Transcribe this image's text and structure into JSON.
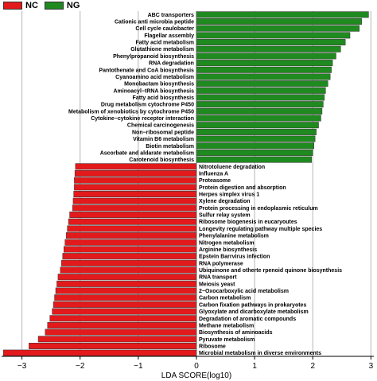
{
  "chart_data": {
    "type": "bar",
    "orientation": "horizontal",
    "xlabel": "LDA SCORE(log10)",
    "xlim": [
      -3.35,
      3.05
    ],
    "xticks": [
      -3,
      -2,
      -1,
      0,
      1,
      2,
      3
    ],
    "xtick_labels": [
      "−3",
      "−2",
      "−1",
      "0",
      "1",
      "2",
      "3"
    ],
    "grid": "vertical",
    "legend_position": "top-left",
    "series": [
      {
        "name": "NC",
        "color": "#e31a1c",
        "categories": [
          "Nitrotoluene degradation",
          "Influenza A",
          "Proteasome",
          "Protein digestion and absorption",
          "Herpes simplex virus 1",
          "Xylene degradation",
          "Protein processing in endoplasmic reticulum",
          "Sulfur relay system",
          "Ribosome biogenesis in eucaryoutes",
          "Longevity regulating pathway multiple species",
          "Phenylalanine metabolism",
          "Nitrogen metabolism",
          "Arginine biosynthesis",
          "Epstein Barrvirus infection",
          "RNA polymerase",
          "Ubiquinone and otherte rpenoid quinone biosynthesis",
          "RNA transport",
          "Meiosis yeast",
          "2−Oxocarboxylic acid metabolism",
          "Carbon metabolism",
          "Carbon fixation pathways in prokaryotes",
          "Glyoxylate and dicarboxylate metabolism",
          "Degradation of aromatic compounds",
          "Methane metabolism",
          "Biosynthesis of aminoacids",
          "Pyruvate metabolism",
          "Ribosome",
          "Microbial metabolism in diverse environments"
        ],
        "values": [
          -2.08,
          -2.09,
          -2.1,
          -2.1,
          -2.11,
          -2.12,
          -2.13,
          -2.18,
          -2.2,
          -2.22,
          -2.24,
          -2.26,
          -2.28,
          -2.3,
          -2.32,
          -2.34,
          -2.38,
          -2.4,
          -2.42,
          -2.44,
          -2.46,
          -2.48,
          -2.52,
          -2.56,
          -2.6,
          -2.72,
          -2.88,
          -3.32
        ]
      },
      {
        "name": "NG",
        "color": "#1f8a1f",
        "categories": [
          "ABC transporters",
          "Cationic anti microbia peptide",
          "Cell cycle caulobacter",
          "Flagellar assembly",
          "Fatty acid metabolism",
          "Glutathione metabolism",
          "Phenylpropanoid biosynthesis",
          "RNA degradation",
          "Pantothenate and CoA biosynthesis",
          "Cyanoamino acid metabolism",
          "Monobactam biosynthesis",
          "Aminoacyl−tRNA biosynthesis",
          "Fatty acid biosynthesis",
          "Drug metabolism cytochrome P450",
          "Metabolism of xenobiotics by cytochrome P450",
          "Cytokine−cytokine receptor interaction",
          "Chemical carcinogenesis",
          "Non−ribosomal peptide",
          "Vitamin B6 metabolism",
          "Biotin metabolism",
          "Ascorbate and aldarate metabolism",
          "Carotenoid biosynthesis"
        ],
        "values": [
          2.96,
          2.84,
          2.8,
          2.64,
          2.56,
          2.48,
          2.4,
          2.34,
          2.32,
          2.3,
          2.26,
          2.22,
          2.2,
          2.18,
          2.16,
          2.14,
          2.1,
          2.06,
          2.04,
          2.02,
          2.0,
          1.98
        ]
      }
    ]
  }
}
